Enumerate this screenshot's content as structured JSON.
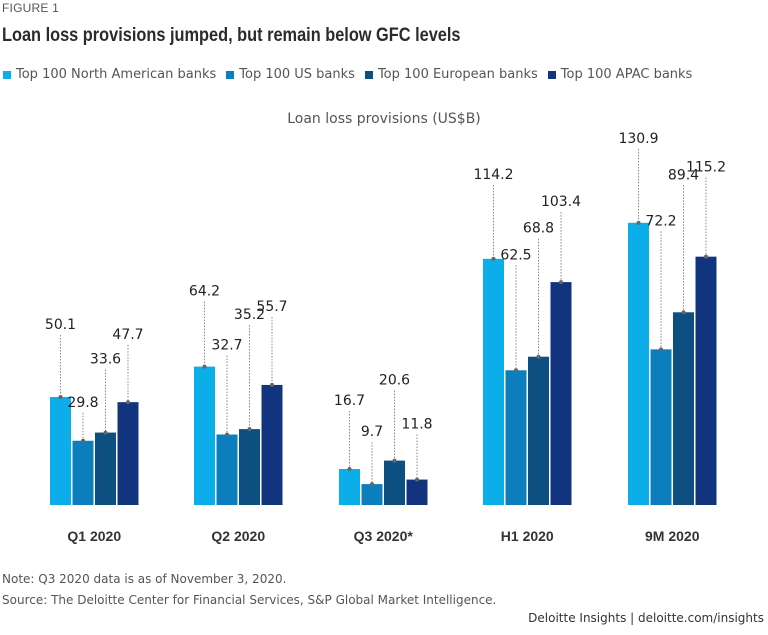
{
  "figure_label": "FIGURE 1",
  "title": "Loan loss provisions jumped, but remain below GFC levels",
  "note": "Note: Q3 2020 data is as of November 3, 2020.",
  "source": "Source: The Deloitte Center for Financial Services, S&P Global Market Intelligence.",
  "credit": "Deloitte Insights | deloitte.com/insights",
  "chart_data": {
    "type": "bar",
    "title": "Loan loss provisions (US$B)",
    "xlabel": "",
    "ylabel": "",
    "ylim": [
      0,
      140
    ],
    "grid": false,
    "legend_position": "top-left",
    "categories": [
      "Q1 2020",
      "Q2 2020",
      "Q3 2020*",
      "H1 2020",
      "9M 2020"
    ],
    "series": [
      {
        "name": "Top 100 North American banks",
        "color": "#0BAEE8",
        "values": [
          50.1,
          64.2,
          16.7,
          114.2,
          130.9
        ]
      },
      {
        "name": "Top 100 US banks",
        "color": "#0C7EBE",
        "values": [
          29.8,
          32.7,
          9.7,
          62.5,
          72.2
        ]
      },
      {
        "name": "Top 100 European banks",
        "color": "#0D4F80",
        "values": [
          33.6,
          35.2,
          20.6,
          68.8,
          89.4
        ]
      },
      {
        "name": "Top 100 APAC banks",
        "color": "#12347F",
        "values": [
          47.7,
          55.7,
          11.8,
          103.4,
          115.2
        ]
      }
    ],
    "data_labels": [
      [
        "50.1",
        "64.2",
        "16.7",
        "114.2",
        "130.9"
      ],
      [
        "29.8",
        "32.7",
        "9.7",
        "62.5",
        "72.2"
      ],
      [
        "33.6",
        "35.2",
        "20.6",
        "68.8",
        "89.4"
      ],
      [
        "47.7",
        "55.7",
        "11.8",
        "103.4",
        "115.2"
      ]
    ]
  }
}
